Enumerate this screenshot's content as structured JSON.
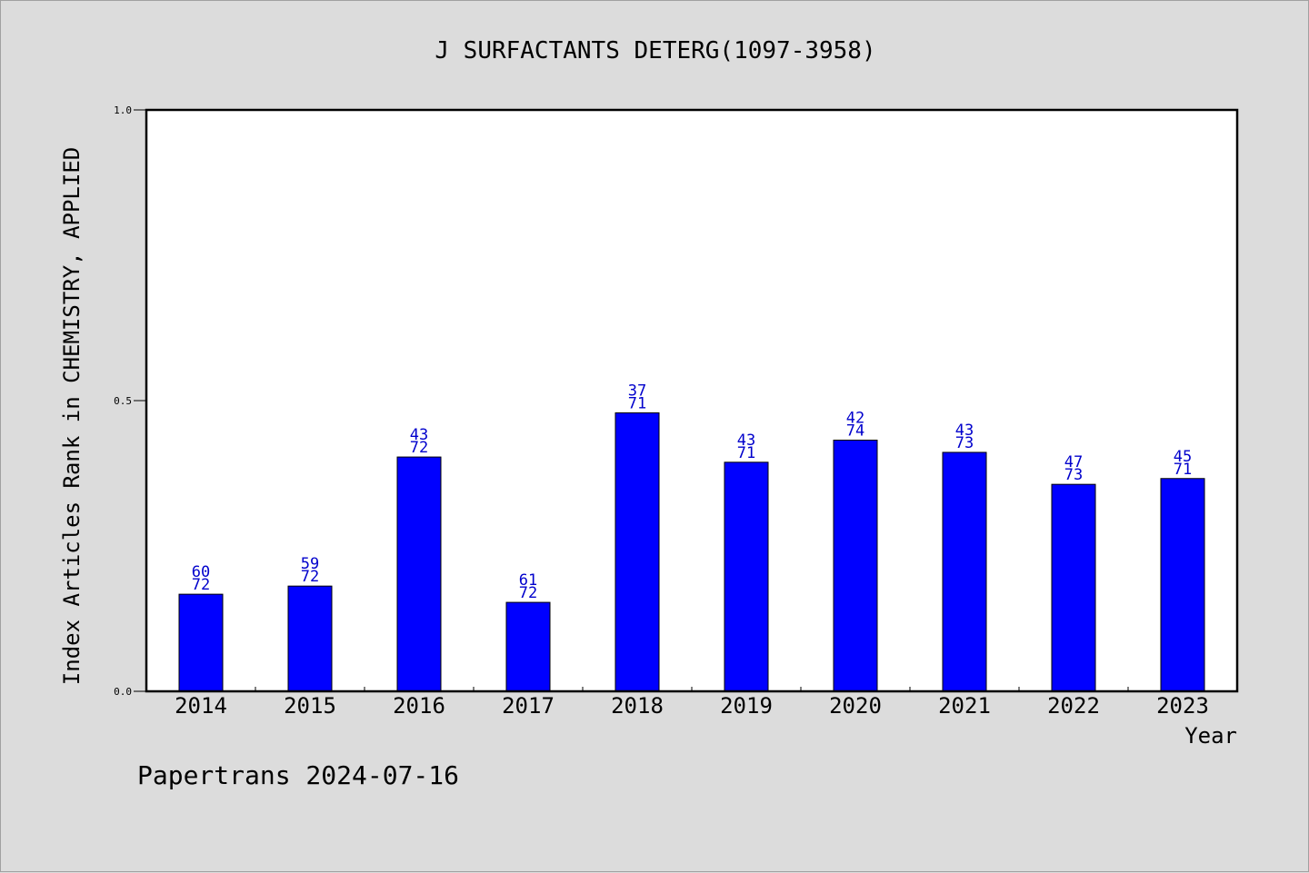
{
  "chart_data": {
    "type": "bar",
    "title": "J SURFACTANTS DETERG(1097-3958)",
    "xlabel": "Year",
    "ylabel": "Index Articles Rank in CHEMISTRY, APPLIED",
    "ylim": [
      0,
      1.0
    ],
    "yticks": [
      "0.0",
      "0.5",
      "1.0"
    ],
    "categories": [
      "2014",
      "2015",
      "2016",
      "2017",
      "2018",
      "2019",
      "2020",
      "2021",
      "2022",
      "2023"
    ],
    "values": [
      0.167,
      0.181,
      0.403,
      0.153,
      0.479,
      0.394,
      0.432,
      0.411,
      0.356,
      0.366
    ],
    "ranks": [
      "60",
      "59",
      "43",
      "61",
      "37",
      "43",
      "42",
      "43",
      "47",
      "45"
    ],
    "totals": [
      "72",
      "72",
      "72",
      "72",
      "71",
      "71",
      "74",
      "73",
      "73",
      "71"
    ],
    "bar_color": "#0000ff",
    "label_color": "#0000cc",
    "grid": false
  },
  "footer": "Papertrans 2024-07-16"
}
